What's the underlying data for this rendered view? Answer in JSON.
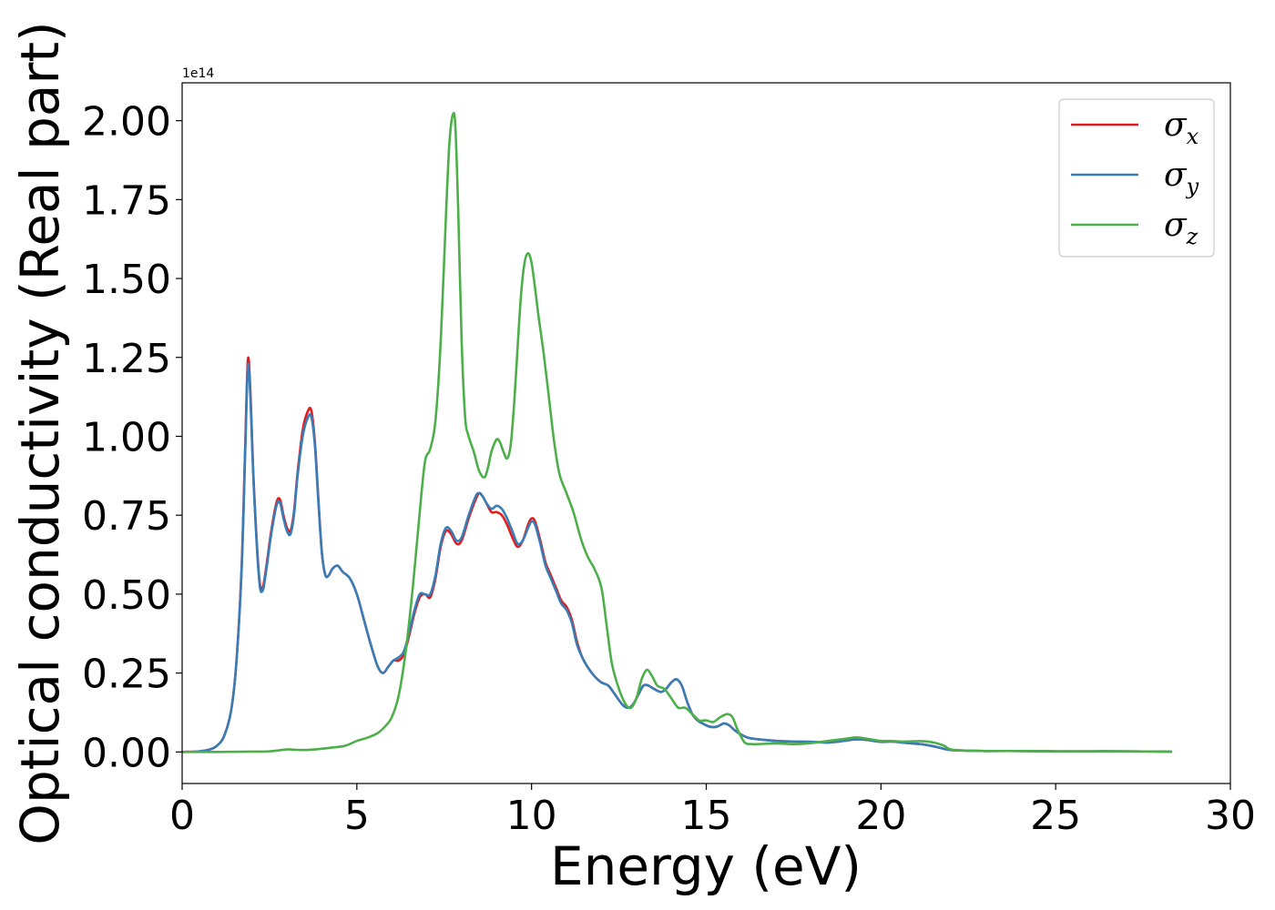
{
  "chart_data": {
    "type": "line",
    "xlabel": "Energy (eV)",
    "ylabel": "Optical conductivity (Real part)",
    "y_offset_label": "1e14",
    "xlim": [
      0,
      30
    ],
    "ylim": [
      -0.1,
      2.12
    ],
    "xticks": [
      0,
      5,
      10,
      15,
      20,
      25,
      30
    ],
    "xtick_labels": [
      "0",
      "5",
      "10",
      "15",
      "20",
      "25",
      "30"
    ],
    "yticks": [
      0.0,
      0.25,
      0.5,
      0.75,
      1.0,
      1.25,
      1.5,
      1.75,
      2.0
    ],
    "ytick_labels": [
      "0.00",
      "0.25",
      "0.50",
      "0.75",
      "1.00",
      "1.25",
      "1.50",
      "1.75",
      "2.00"
    ],
    "grid": false,
    "legend_position": "top-right",
    "series": [
      {
        "name": "σ",
        "subscript": "x",
        "color": "#e41a1c",
        "x": [
          0,
          0.5,
          0.8,
          1.0,
          1.2,
          1.4,
          1.55,
          1.7,
          1.8,
          1.88,
          1.95,
          2.05,
          2.2,
          2.3,
          2.4,
          2.55,
          2.7,
          2.8,
          2.9,
          3.0,
          3.1,
          3.2,
          3.3,
          3.45,
          3.6,
          3.7,
          3.8,
          3.9,
          4.0,
          4.1,
          4.2,
          4.3,
          4.45,
          4.6,
          4.8,
          5.0,
          5.2,
          5.4,
          5.6,
          5.75,
          5.9,
          6.05,
          6.2,
          6.35,
          6.5,
          6.65,
          6.8,
          6.95,
          7.1,
          7.25,
          7.4,
          7.55,
          7.7,
          7.85,
          8.0,
          8.2,
          8.4,
          8.5,
          8.6,
          8.7,
          8.85,
          9.0,
          9.15,
          9.3,
          9.45,
          9.6,
          9.75,
          9.9,
          10.0,
          10.1,
          10.25,
          10.4,
          10.55,
          10.7,
          10.85,
          11.0,
          11.15,
          11.3,
          11.45,
          11.6,
          11.8,
          12.0,
          12.2,
          12.4,
          12.6,
          12.75,
          12.9,
          13.05,
          13.2,
          13.35,
          13.5,
          13.7,
          13.85,
          14.0,
          14.15,
          14.3,
          14.45,
          14.6,
          14.75,
          14.9,
          15.1,
          15.3,
          15.5,
          15.65,
          15.8,
          16.0,
          16.2,
          16.5,
          17.0,
          17.5,
          18.0,
          18.5,
          19.0,
          19.3,
          19.6,
          20.0,
          20.3,
          20.6,
          21.0,
          21.2,
          21.5,
          21.8,
          22.0,
          22.5,
          23,
          24,
          25,
          26,
          27,
          28.3
        ],
        "values": [
          0.0,
          0.002,
          0.008,
          0.02,
          0.05,
          0.13,
          0.28,
          0.58,
          0.95,
          1.24,
          1.15,
          0.85,
          0.56,
          0.52,
          0.58,
          0.7,
          0.79,
          0.8,
          0.75,
          0.71,
          0.7,
          0.76,
          0.88,
          1.02,
          1.08,
          1.08,
          0.98,
          0.8,
          0.63,
          0.56,
          0.56,
          0.58,
          0.59,
          0.57,
          0.55,
          0.5,
          0.42,
          0.34,
          0.27,
          0.25,
          0.27,
          0.29,
          0.29,
          0.31,
          0.37,
          0.44,
          0.49,
          0.5,
          0.49,
          0.55,
          0.65,
          0.7,
          0.69,
          0.66,
          0.67,
          0.74,
          0.8,
          0.82,
          0.81,
          0.79,
          0.76,
          0.76,
          0.75,
          0.72,
          0.68,
          0.65,
          0.67,
          0.72,
          0.74,
          0.73,
          0.67,
          0.6,
          0.56,
          0.52,
          0.48,
          0.46,
          0.42,
          0.35,
          0.3,
          0.27,
          0.24,
          0.22,
          0.21,
          0.18,
          0.15,
          0.14,
          0.15,
          0.18,
          0.21,
          0.21,
          0.2,
          0.19,
          0.2,
          0.22,
          0.23,
          0.21,
          0.16,
          0.12,
          0.1,
          0.09,
          0.08,
          0.08,
          0.09,
          0.085,
          0.07,
          0.055,
          0.045,
          0.04,
          0.035,
          0.033,
          0.032,
          0.03,
          0.036,
          0.04,
          0.038,
          0.032,
          0.033,
          0.03,
          0.026,
          0.024,
          0.018,
          0.01,
          0.006,
          0.004,
          0.003,
          0.003,
          0.002,
          0.002,
          0.002,
          0.001
        ]
      },
      {
        "name": "σ",
        "subscript": "y",
        "color": "#377eb8",
        "x": [
          0,
          0.5,
          0.8,
          1.0,
          1.2,
          1.4,
          1.55,
          1.7,
          1.8,
          1.88,
          1.95,
          2.05,
          2.2,
          2.3,
          2.4,
          2.55,
          2.7,
          2.8,
          2.9,
          3.0,
          3.1,
          3.2,
          3.3,
          3.45,
          3.6,
          3.7,
          3.8,
          3.9,
          4.0,
          4.1,
          4.2,
          4.3,
          4.45,
          4.6,
          4.8,
          5.0,
          5.2,
          5.4,
          5.6,
          5.75,
          5.9,
          6.05,
          6.2,
          6.35,
          6.5,
          6.65,
          6.8,
          6.95,
          7.1,
          7.25,
          7.4,
          7.55,
          7.7,
          7.85,
          8.0,
          8.2,
          8.4,
          8.5,
          8.6,
          8.7,
          8.85,
          9.0,
          9.15,
          9.3,
          9.45,
          9.6,
          9.75,
          9.9,
          10.0,
          10.1,
          10.25,
          10.4,
          10.55,
          10.7,
          10.85,
          11.0,
          11.15,
          11.3,
          11.45,
          11.6,
          11.8,
          12.0,
          12.2,
          12.4,
          12.6,
          12.75,
          12.9,
          13.05,
          13.2,
          13.35,
          13.5,
          13.7,
          13.85,
          14.0,
          14.15,
          14.3,
          14.45,
          14.6,
          14.75,
          14.9,
          15.1,
          15.3,
          15.5,
          15.65,
          15.8,
          16.0,
          16.2,
          16.5,
          17.0,
          17.5,
          18.0,
          18.5,
          19.0,
          19.3,
          19.6,
          20.0,
          20.3,
          20.6,
          21.0,
          21.2,
          21.5,
          21.8,
          22.0,
          22.5,
          23,
          24,
          25,
          26,
          27,
          28.3
        ],
        "values": [
          0.0,
          0.002,
          0.008,
          0.02,
          0.05,
          0.13,
          0.28,
          0.57,
          0.93,
          1.22,
          1.13,
          0.84,
          0.55,
          0.51,
          0.57,
          0.69,
          0.78,
          0.79,
          0.74,
          0.7,
          0.69,
          0.75,
          0.87,
          1.0,
          1.06,
          1.06,
          0.97,
          0.79,
          0.63,
          0.56,
          0.56,
          0.58,
          0.59,
          0.57,
          0.55,
          0.5,
          0.42,
          0.34,
          0.27,
          0.25,
          0.27,
          0.29,
          0.3,
          0.32,
          0.38,
          0.45,
          0.5,
          0.5,
          0.5,
          0.56,
          0.66,
          0.71,
          0.7,
          0.67,
          0.68,
          0.75,
          0.81,
          0.82,
          0.81,
          0.79,
          0.77,
          0.78,
          0.77,
          0.74,
          0.7,
          0.66,
          0.67,
          0.71,
          0.73,
          0.72,
          0.66,
          0.59,
          0.55,
          0.51,
          0.47,
          0.45,
          0.41,
          0.34,
          0.3,
          0.27,
          0.24,
          0.22,
          0.21,
          0.18,
          0.15,
          0.14,
          0.15,
          0.18,
          0.21,
          0.21,
          0.2,
          0.19,
          0.2,
          0.22,
          0.23,
          0.21,
          0.16,
          0.12,
          0.1,
          0.09,
          0.08,
          0.08,
          0.09,
          0.085,
          0.07,
          0.055,
          0.045,
          0.04,
          0.035,
          0.033,
          0.032,
          0.03,
          0.036,
          0.04,
          0.038,
          0.032,
          0.033,
          0.03,
          0.026,
          0.024,
          0.018,
          0.01,
          0.006,
          0.004,
          0.003,
          0.003,
          0.002,
          0.002,
          0.002,
          0.001
        ]
      },
      {
        "name": "σ",
        "subscript": "z",
        "color": "#4daf4a",
        "x": [
          0,
          1,
          2,
          2.5,
          3.0,
          3.2,
          3.5,
          3.8,
          4.0,
          4.3,
          4.6,
          4.8,
          5.0,
          5.3,
          5.6,
          5.8,
          6.0,
          6.2,
          6.4,
          6.6,
          6.8,
          6.95,
          7.1,
          7.25,
          7.4,
          7.55,
          7.65,
          7.75,
          7.82,
          7.9,
          8.0,
          8.1,
          8.2,
          8.35,
          8.5,
          8.65,
          8.75,
          8.85,
          9.0,
          9.1,
          9.2,
          9.3,
          9.4,
          9.5,
          9.6,
          9.7,
          9.8,
          9.9,
          10.0,
          10.1,
          10.2,
          10.35,
          10.5,
          10.65,
          10.8,
          11.0,
          11.2,
          11.4,
          11.6,
          11.8,
          12.0,
          12.15,
          12.3,
          12.5,
          12.7,
          12.85,
          13.0,
          13.15,
          13.3,
          13.45,
          13.6,
          13.8,
          14.0,
          14.2,
          14.4,
          14.6,
          14.8,
          15.0,
          15.2,
          15.4,
          15.6,
          15.75,
          15.9,
          16.1,
          16.3,
          16.5,
          17.0,
          17.5,
          18.0,
          18.5,
          19.0,
          19.3,
          19.6,
          20.0,
          20.3,
          20.6,
          21.0,
          21.2,
          21.5,
          21.8,
          22.0,
          22.5,
          23,
          24,
          25,
          26,
          27,
          28.3
        ],
        "values": [
          0.0,
          0.0,
          0.001,
          0.002,
          0.008,
          0.007,
          0.006,
          0.008,
          0.01,
          0.014,
          0.018,
          0.025,
          0.035,
          0.045,
          0.06,
          0.08,
          0.11,
          0.18,
          0.32,
          0.52,
          0.76,
          0.92,
          0.96,
          1.05,
          1.3,
          1.7,
          1.93,
          2.02,
          1.98,
          1.72,
          1.3,
          1.06,
          1.0,
          0.95,
          0.89,
          0.87,
          0.9,
          0.95,
          0.99,
          0.98,
          0.95,
          0.93,
          0.97,
          1.1,
          1.28,
          1.45,
          1.55,
          1.58,
          1.55,
          1.47,
          1.38,
          1.26,
          1.12,
          0.98,
          0.88,
          0.82,
          0.76,
          0.68,
          0.62,
          0.58,
          0.52,
          0.4,
          0.28,
          0.2,
          0.15,
          0.14,
          0.17,
          0.23,
          0.26,
          0.24,
          0.21,
          0.2,
          0.17,
          0.14,
          0.14,
          0.12,
          0.1,
          0.1,
          0.095,
          0.11,
          0.12,
          0.11,
          0.07,
          0.03,
          0.025,
          0.025,
          0.027,
          0.025,
          0.028,
          0.035,
          0.042,
          0.046,
          0.042,
          0.035,
          0.035,
          0.033,
          0.034,
          0.034,
          0.03,
          0.02,
          0.008,
          0.004,
          0.003,
          0.003,
          0.002,
          0.002,
          0.002,
          0.001
        ]
      }
    ]
  }
}
